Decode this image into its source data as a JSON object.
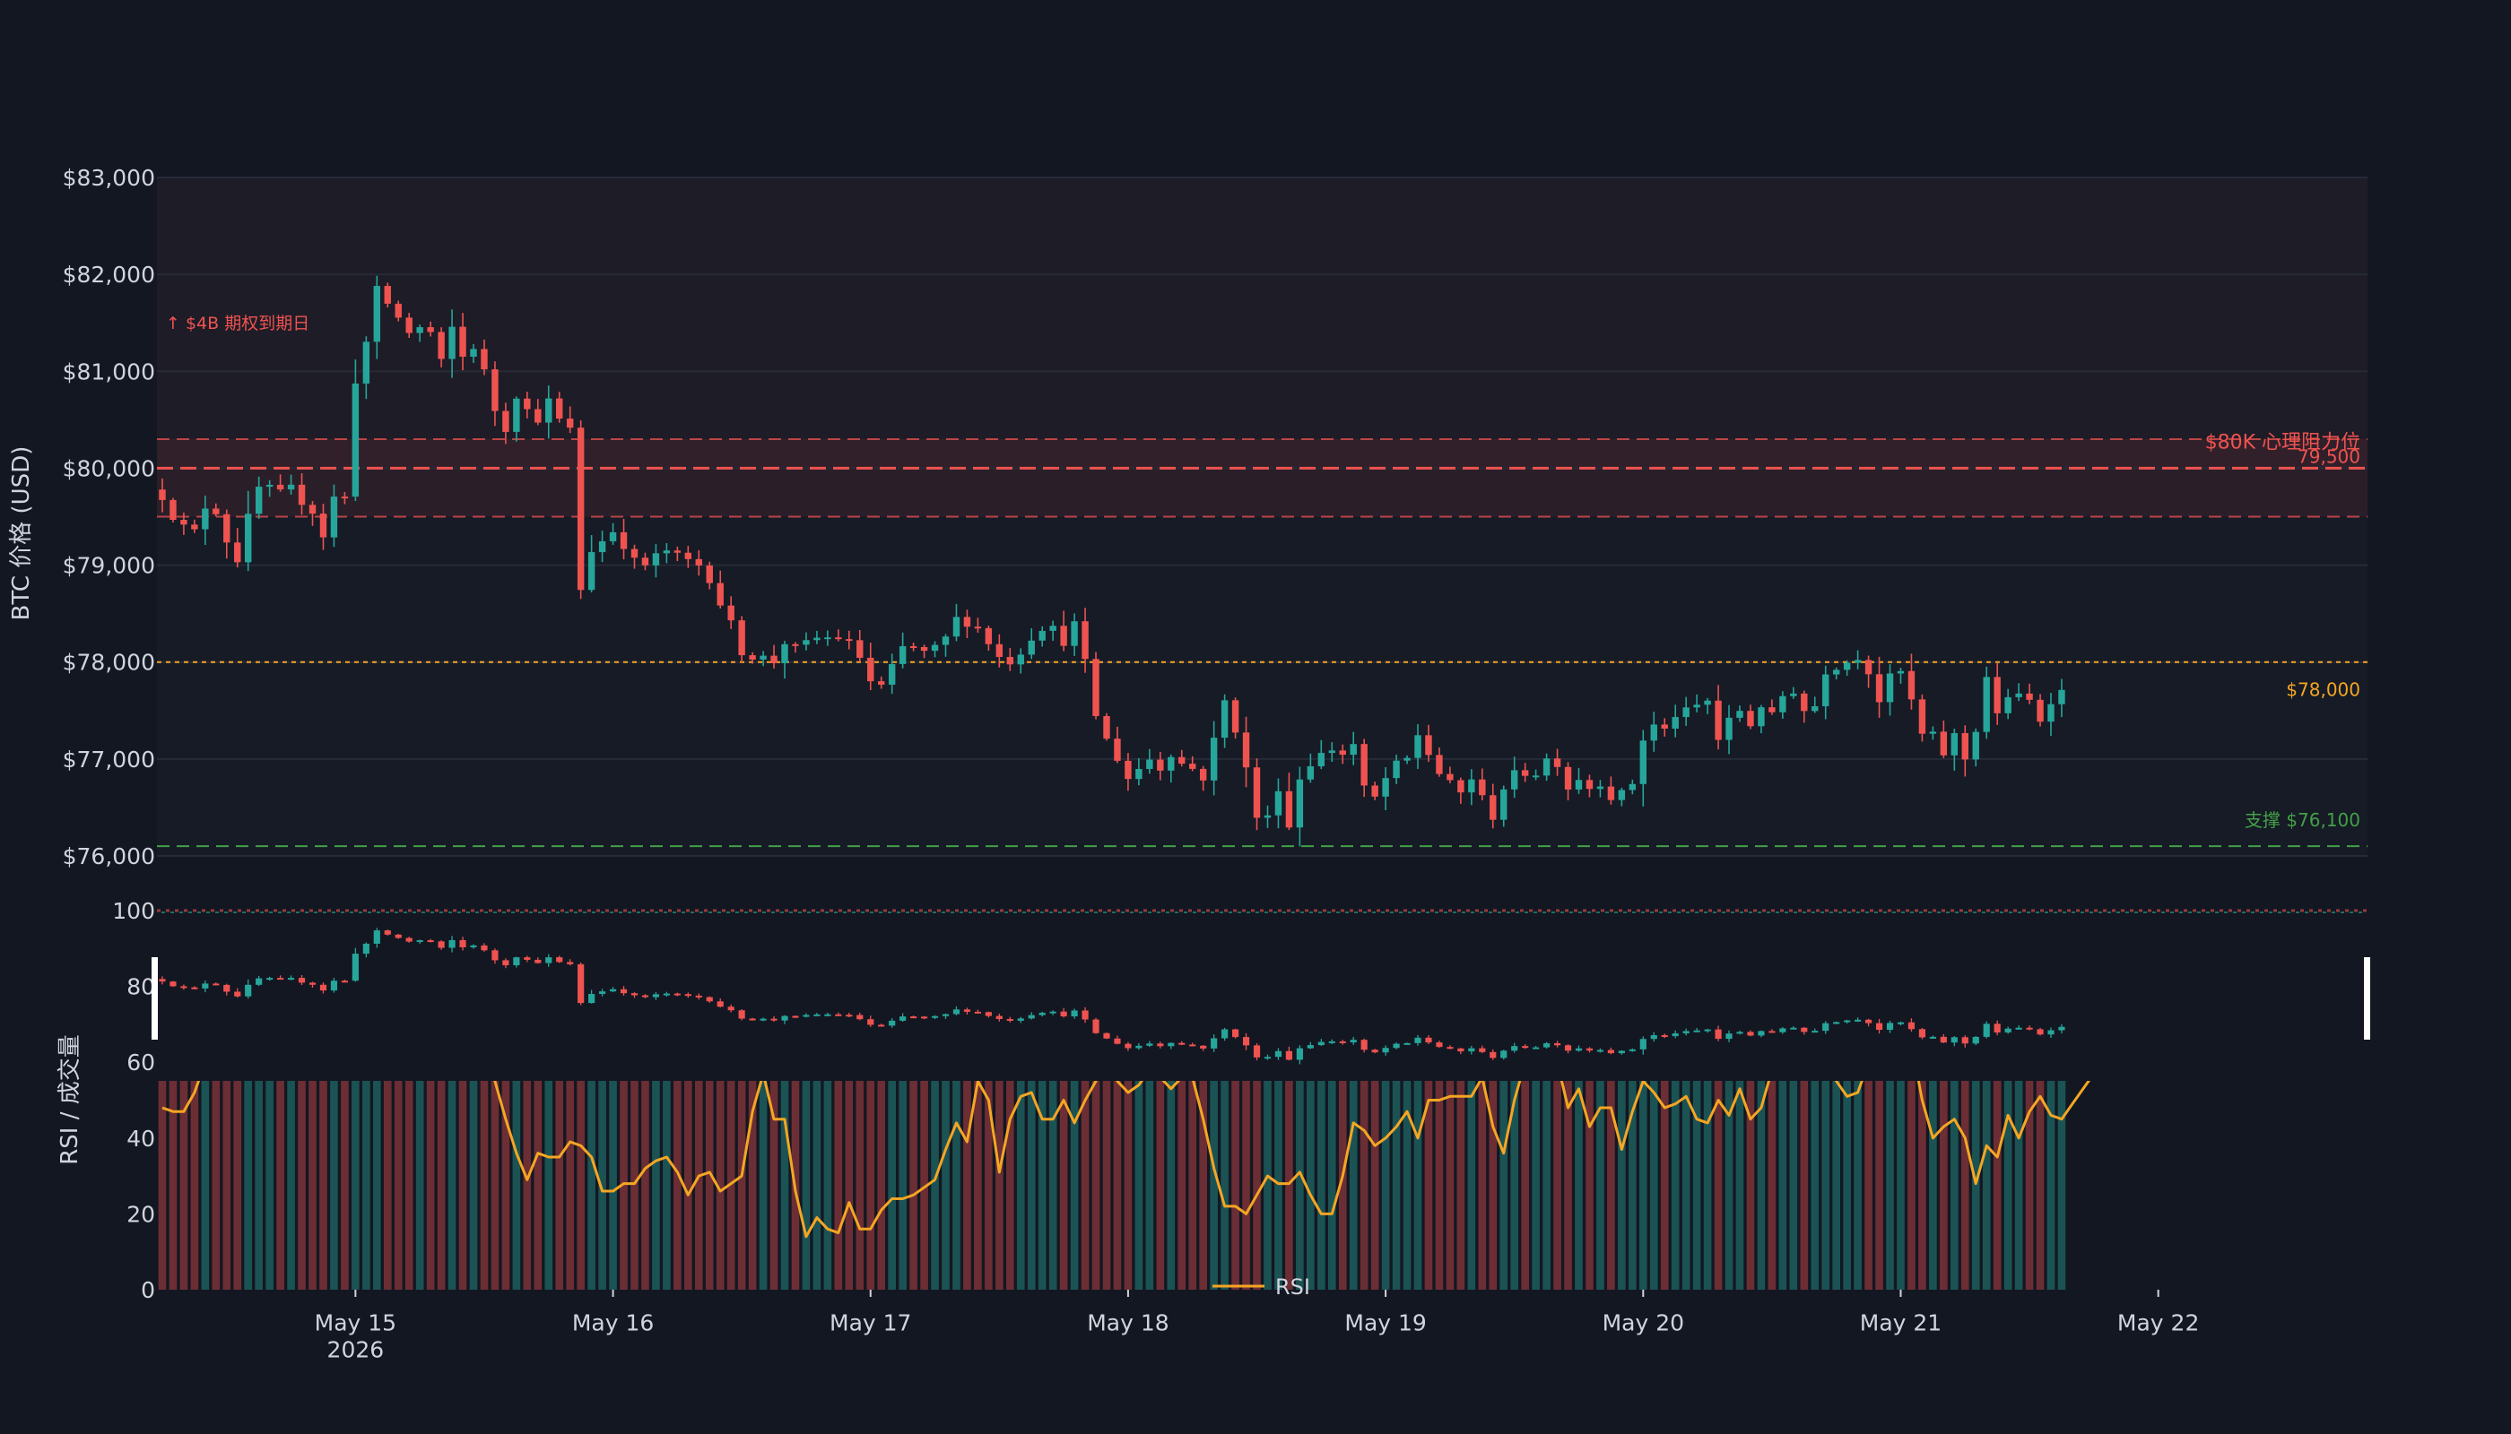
{
  "chart_data": {
    "type": "candlestick",
    "title": "",
    "colors": {
      "background": "#131722",
      "up": "#26a69a",
      "down": "#ef5350",
      "grid": "#262b37",
      "text": "#d1d4dc",
      "rsi": "#f5a623",
      "support": "#43a047",
      "current_price": "#f5a623"
    },
    "price_panel": {
      "ylabel": "BTC 价格 (USD)",
      "ylim": [
        76000,
        83000
      ],
      "yticks": [
        76000,
        77000,
        78000,
        79000,
        80000,
        81000,
        82000,
        83000
      ],
      "ytick_labels": [
        "$76,000",
        "$77,000",
        "$78,000",
        "$79,000",
        "$80,000",
        "$81,000",
        "$82,000",
        "$83,000"
      ]
    },
    "indicator_panel": {
      "ylabel": "RSI / 成交量",
      "ylim": [
        0,
        100
      ],
      "yticks": [
        0,
        20,
        40,
        60,
        80,
        100
      ],
      "ytick_labels": [
        "0",
        "20",
        "40",
        "60",
        "80",
        "100"
      ],
      "legend": "RSI"
    },
    "x_axis": {
      "start_date": "2026-05-14",
      "start_hour": 6,
      "end_hour_offset": 206,
      "ticks": [
        {
          "hour": 24,
          "label": "May 15",
          "sublabel": "2026"
        },
        {
          "hour": 48,
          "label": "May 16",
          "sublabel": ""
        },
        {
          "hour": 72,
          "label": "May 17",
          "sublabel": ""
        },
        {
          "hour": 96,
          "label": "May 18",
          "sublabel": ""
        },
        {
          "hour": 120,
          "label": "May 19",
          "sublabel": ""
        },
        {
          "hour": 144,
          "label": "May 20",
          "sublabel": ""
        },
        {
          "hour": 168,
          "label": "May 21",
          "sublabel": ""
        },
        {
          "hour": 192,
          "label": "May 22",
          "sublabel": ""
        }
      ]
    },
    "zones": [
      {
        "from": 80000,
        "to": 83000,
        "label": ""
      },
      {
        "from": 79500,
        "to": 80300,
        "label": ""
      }
    ],
    "reference_lines": [
      {
        "value": 80000,
        "label": "$80K 心理阻力位",
        "role": "resistance"
      },
      {
        "value": 79500,
        "label": "79,500",
        "role": "resistance-lower"
      },
      {
        "value": 80300,
        "label": "",
        "role": "resistance-upper"
      },
      {
        "value": 78000,
        "label": "$78,000",
        "role": "current"
      },
      {
        "value": 76100,
        "label": "支撑 $76,100",
        "role": "support"
      }
    ],
    "annotations": [
      {
        "hour": 1,
        "price": 81500,
        "text": "↑ $4B 期权到期日"
      }
    ],
    "candles_hourly_close_waypoints": [
      [
        0,
        79700
      ],
      [
        1,
        79500
      ],
      [
        2,
        79400
      ],
      [
        3,
        79350
      ],
      [
        4,
        79600
      ],
      [
        5,
        79550
      ],
      [
        6,
        79250
      ],
      [
        7,
        79050
      ],
      [
        8,
        79500
      ],
      [
        9,
        79800
      ],
      [
        10,
        79800
      ],
      [
        11,
        79750
      ],
      [
        12,
        79800
      ],
      [
        13,
        79650
      ],
      [
        14,
        79550
      ],
      [
        15,
        79300
      ],
      [
        16,
        79700
      ],
      [
        17,
        79700
      ],
      [
        18,
        80900
      ],
      [
        19,
        81300
      ],
      [
        20,
        81850
      ],
      [
        21,
        81700
      ],
      [
        22,
        81550
      ],
      [
        23,
        81400
      ],
      [
        24,
        81450
      ],
      [
        25,
        81400
      ],
      [
        26,
        81100
      ],
      [
        27,
        81450
      ],
      [
        28,
        81150
      ],
      [
        29,
        81250
      ],
      [
        30,
        81000
      ],
      [
        31,
        80600
      ],
      [
        32,
        80400
      ],
      [
        33,
        80750
      ],
      [
        34,
        80600
      ],
      [
        35,
        80500
      ],
      [
        36,
        80700
      ],
      [
        37,
        80500
      ],
      [
        38,
        80400
      ],
      [
        39,
        78750
      ],
      [
        40,
        79150
      ],
      [
        41,
        79250
      ],
      [
        42,
        79350
      ],
      [
        43,
        79200
      ],
      [
        44,
        79050
      ],
      [
        45,
        79000
      ],
      [
        46,
        79100
      ],
      [
        47,
        79150
      ],
      [
        48,
        79100
      ],
      [
        49,
        79050
      ],
      [
        50,
        79000
      ],
      [
        51,
        78850
      ],
      [
        52,
        78600
      ],
      [
        53,
        78400
      ],
      [
        54,
        78100
      ],
      [
        55,
        78050
      ],
      [
        56,
        78050
      ],
      [
        57,
        78000
      ],
      [
        58,
        78200
      ],
      [
        59,
        78150
      ],
      [
        60,
        78200
      ],
      [
        61,
        78250
      ],
      [
        62,
        78250
      ],
      [
        63,
        78250
      ],
      [
        64,
        78200
      ],
      [
        65,
        78050
      ],
      [
        66,
        77800
      ],
      [
        67,
        77750
      ],
      [
        68,
        77950
      ],
      [
        69,
        78150
      ],
      [
        70,
        78150
      ],
      [
        71,
        78100
      ],
      [
        72,
        78150
      ],
      [
        73,
        78250
      ],
      [
        74,
        78450
      ],
      [
        75,
        78400
      ],
      [
        76,
        78350
      ],
      [
        77,
        78200
      ],
      [
        78,
        78050
      ],
      [
        79,
        78000
      ],
      [
        80,
        78100
      ],
      [
        81,
        78250
      ],
      [
        82,
        78350
      ],
      [
        83,
        78350
      ],
      [
        84,
        78200
      ],
      [
        85,
        78400
      ],
      [
        86,
        78000
      ],
      [
        87,
        77450
      ],
      [
        88,
        77200
      ],
      [
        89,
        77000
      ],
      [
        90,
        76800
      ],
      [
        91,
        76900
      ],
      [
        92,
        77000
      ],
      [
        93,
        76900
      ],
      [
        94,
        77050
      ],
      [
        95,
        76950
      ],
      [
        96,
        76900
      ],
      [
        97,
        76800
      ],
      [
        98,
        77200
      ],
      [
        99,
        77600
      ],
      [
        100,
        77300
      ],
      [
        101,
        76900
      ],
      [
        102,
        76400
      ],
      [
        103,
        76400
      ],
      [
        104,
        76700
      ],
      [
        105,
        76300
      ],
      [
        106,
        76800
      ],
      [
        107,
        76950
      ],
      [
        108,
        77050
      ],
      [
        109,
        77100
      ],
      [
        110,
        77050
      ],
      [
        111,
        77150
      ],
      [
        112,
        76700
      ],
      [
        113,
        76600
      ],
      [
        114,
        76800
      ],
      [
        115,
        76950
      ],
      [
        116,
        77000
      ],
      [
        117,
        77250
      ],
      [
        118,
        77050
      ],
      [
        119,
        76850
      ],
      [
        120,
        76750
      ],
      [
        121,
        76650
      ],
      [
        122,
        76800
      ],
      [
        123,
        76600
      ],
      [
        124,
        76400
      ],
      [
        125,
        76700
      ],
      [
        126,
        76850
      ],
      [
        127,
        76850
      ],
      [
        128,
        76850
      ],
      [
        129,
        77000
      ],
      [
        130,
        76950
      ],
      [
        131,
        76700
      ],
      [
        132,
        76800
      ],
      [
        133,
        76700
      ],
      [
        134,
        76750
      ],
      [
        135,
        76600
      ],
      [
        136,
        76650
      ],
      [
        137,
        76750
      ],
      [
        138,
        77200
      ],
      [
        139,
        77350
      ],
      [
        140,
        77300
      ],
      [
        141,
        77450
      ],
      [
        142,
        77500
      ],
      [
        143,
        77550
      ],
      [
        144,
        77600
      ],
      [
        145,
        77200
      ],
      [
        146,
        77400
      ],
      [
        147,
        77500
      ],
      [
        148,
        77350
      ],
      [
        149,
        77550
      ],
      [
        150,
        77450
      ],
      [
        151,
        77650
      ],
      [
        152,
        77700
      ],
      [
        153,
        77500
      ],
      [
        154,
        77550
      ],
      [
        155,
        77900
      ],
      [
        156,
        77950
      ],
      [
        157,
        78000
      ],
      [
        158,
        78050
      ],
      [
        159,
        77900
      ],
      [
        160,
        77600
      ],
      [
        161,
        77850
      ],
      [
        162,
        77900
      ],
      [
        163,
        77600
      ],
      [
        164,
        77250
      ],
      [
        165,
        77250
      ],
      [
        166,
        77050
      ],
      [
        167,
        77250
      ],
      [
        168,
        77000
      ],
      [
        169,
        77300
      ],
      [
        170,
        77850
      ],
      [
        171,
        77450
      ],
      [
        172,
        77650
      ],
      [
        173,
        77650
      ],
      [
        174,
        77600
      ],
      [
        175,
        77400
      ],
      [
        176,
        77600
      ],
      [
        177,
        77700
      ]
    ],
    "rsi_waypoints": [
      [
        0,
        48
      ],
      [
        1,
        47
      ],
      [
        2,
        47
      ],
      [
        3,
        52
      ],
      [
        4,
        60
      ],
      [
        5,
        65
      ],
      [
        8,
        72
      ],
      [
        12,
        75
      ],
      [
        16,
        70
      ],
      [
        18,
        78
      ],
      [
        22,
        76
      ],
      [
        26,
        72
      ],
      [
        30,
        62
      ],
      [
        31,
        55
      ],
      [
        32,
        45
      ],
      [
        33,
        36
      ],
      [
        34,
        29
      ],
      [
        35,
        36
      ],
      [
        36,
        35
      ],
      [
        37,
        35
      ],
      [
        38,
        39
      ],
      [
        39,
        38
      ],
      [
        40,
        35
      ],
      [
        41,
        26
      ],
      [
        42,
        26
      ],
      [
        43,
        28
      ],
      [
        44,
        28
      ],
      [
        45,
        32
      ],
      [
        46,
        34
      ],
      [
        47,
        35
      ],
      [
        48,
        31
      ],
      [
        49,
        25
      ],
      [
        50,
        30
      ],
      [
        51,
        31
      ],
      [
        52,
        26
      ],
      [
        53,
        28
      ],
      [
        54,
        30
      ],
      [
        55,
        47
      ],
      [
        56,
        57
      ],
      [
        57,
        45
      ],
      [
        58,
        45
      ],
      [
        59,
        26
      ],
      [
        60,
        14
      ],
      [
        61,
        19
      ],
      [
        62,
        16
      ],
      [
        63,
        15
      ],
      [
        64,
        23
      ],
      [
        65,
        16
      ],
      [
        66,
        16
      ],
      [
        67,
        21
      ],
      [
        68,
        24
      ],
      [
        69,
        24
      ],
      [
        70,
        25
      ],
      [
        71,
        27
      ],
      [
        72,
        29
      ],
      [
        73,
        37
      ],
      [
        74,
        44
      ],
      [
        75,
        39
      ],
      [
        76,
        55
      ],
      [
        77,
        50
      ],
      [
        78,
        31
      ],
      [
        79,
        45
      ],
      [
        80,
        51
      ],
      [
        81,
        52
      ],
      [
        82,
        45
      ],
      [
        83,
        45
      ],
      [
        84,
        50
      ],
      [
        85,
        44
      ],
      [
        86,
        50
      ],
      [
        87,
        55
      ],
      [
        88,
        60
      ],
      [
        89,
        55
      ],
      [
        90,
        52
      ],
      [
        91,
        54
      ],
      [
        92,
        58
      ],
      [
        93,
        56
      ],
      [
        94,
        53
      ],
      [
        95,
        56
      ],
      [
        96,
        56
      ],
      [
        97,
        45
      ],
      [
        98,
        32
      ],
      [
        99,
        22
      ],
      [
        100,
        22
      ],
      [
        101,
        20
      ],
      [
        102,
        25
      ],
      [
        103,
        30
      ],
      [
        104,
        28
      ],
      [
        105,
        28
      ],
      [
        106,
        31
      ],
      [
        107,
        25
      ],
      [
        108,
        20
      ],
      [
        109,
        20
      ],
      [
        110,
        30
      ],
      [
        111,
        44
      ],
      [
        112,
        42
      ],
      [
        113,
        38
      ],
      [
        114,
        40
      ],
      [
        115,
        43
      ],
      [
        116,
        47
      ],
      [
        117,
        40
      ],
      [
        118,
        50
      ],
      [
        119,
        50
      ],
      [
        120,
        51
      ],
      [
        121,
        51
      ],
      [
        122,
        51
      ],
      [
        123,
        56
      ],
      [
        124,
        43
      ],
      [
        125,
        36
      ],
      [
        126,
        50
      ],
      [
        127,
        60
      ],
      [
        128,
        62
      ],
      [
        129,
        64
      ],
      [
        130,
        60
      ],
      [
        131,
        48
      ],
      [
        132,
        53
      ],
      [
        133,
        43
      ],
      [
        134,
        48
      ],
      [
        135,
        48
      ],
      [
        136,
        37
      ],
      [
        137,
        47
      ],
      [
        138,
        55
      ],
      [
        139,
        52
      ],
      [
        140,
        48
      ],
      [
        141,
        49
      ],
      [
        142,
        51
      ],
      [
        143,
        45
      ],
      [
        144,
        44
      ],
      [
        145,
        50
      ],
      [
        146,
        46
      ],
      [
        147,
        53
      ],
      [
        148,
        45
      ],
      [
        149,
        48
      ],
      [
        150,
        58
      ],
      [
        151,
        62
      ],
      [
        152,
        66
      ],
      [
        153,
        68
      ],
      [
        154,
        66
      ],
      [
        155,
        62
      ],
      [
        156,
        55
      ],
      [
        157,
        51
      ],
      [
        158,
        52
      ],
      [
        159,
        60
      ],
      [
        160,
        68
      ],
      [
        161,
        70
      ],
      [
        162,
        67
      ],
      [
        163,
        65
      ],
      [
        164,
        50
      ],
      [
        165,
        40
      ],
      [
        166,
        43
      ],
      [
        167,
        45
      ],
      [
        168,
        40
      ],
      [
        169,
        28
      ],
      [
        170,
        38
      ],
      [
        171,
        35
      ],
      [
        172,
        46
      ],
      [
        173,
        40
      ],
      [
        174,
        47
      ],
      [
        175,
        51
      ],
      [
        176,
        46
      ],
      [
        177,
        45
      ],
      [
        178,
        49
      ],
      [
        179,
        53
      ],
      [
        180,
        57
      ],
      [
        181,
        58
      ]
    ]
  }
}
